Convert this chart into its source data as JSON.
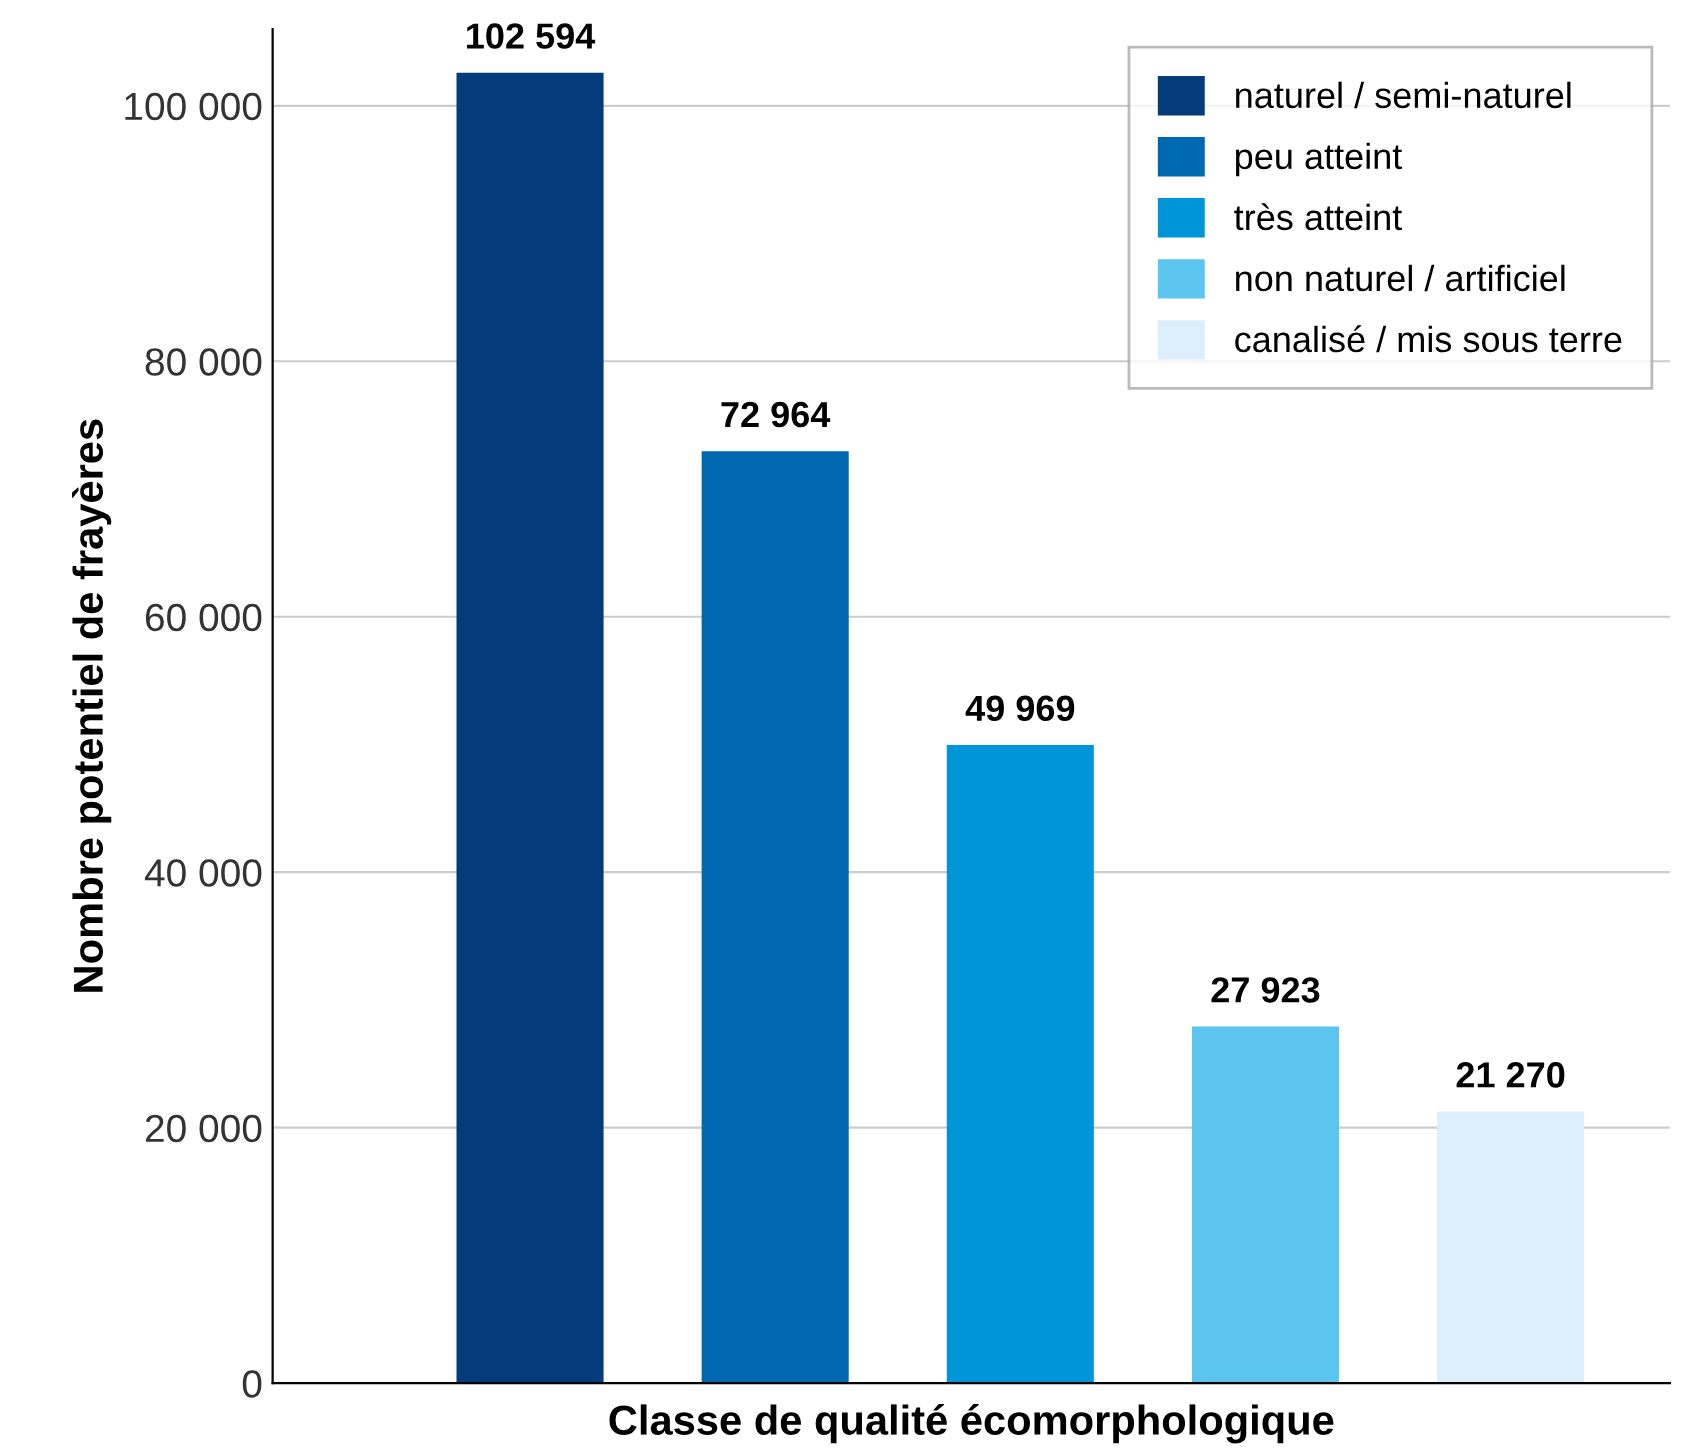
{
  "chart_data": {
    "type": "bar",
    "xlabel": "Classe de qualité écomorphologique",
    "ylabel": "Nombre potentiel de frayères",
    "categories": [
      null,
      null,
      null,
      null,
      null
    ],
    "series": [
      {
        "name": "naturel / semi-naturel",
        "color": "#043b7b",
        "values": [
          102594,
          null,
          null,
          null,
          null
        ],
        "value_labels": [
          "102 594",
          null,
          null,
          null,
          null
        ]
      },
      {
        "name": "peu atteint",
        "color": "#0067b1",
        "values": [
          null,
          72964,
          null,
          null,
          null
        ],
        "value_labels": [
          null,
          "72 964",
          null,
          null,
          null
        ]
      },
      {
        "name": "très atteint",
        "color": "#0095d9",
        "values": [
          null,
          null,
          49969,
          null,
          null
        ],
        "value_labels": [
          null,
          null,
          "49 969",
          null,
          null
        ]
      },
      {
        "name": "non naturel / artificiel",
        "color": "#5bc5f0",
        "values": [
          null,
          null,
          null,
          27923,
          null
        ],
        "value_labels": [
          null,
          null,
          null,
          "27 923",
          null
        ]
      },
      {
        "name": "canalisé / mis sous terre",
        "color": "#dbeefa",
        "values": [
          null,
          null,
          null,
          null,
          21270
        ],
        "value_labels": [
          null,
          null,
          null,
          null,
          "21 270"
        ]
      }
    ],
    "ylim": [
      0,
      106000
    ],
    "yticks": [
      0,
      {
        "value": 20000,
        "label": "20 000"
      },
      {
        "value": 40000,
        "label": "40 000"
      },
      {
        "value": 60000,
        "label": "60 000"
      },
      {
        "value": 80000,
        "label": "80 000"
      },
      {
        "value": 100000,
        "label": "100 000"
      }
    ],
    "grid": "y",
    "legend": "top right"
  }
}
